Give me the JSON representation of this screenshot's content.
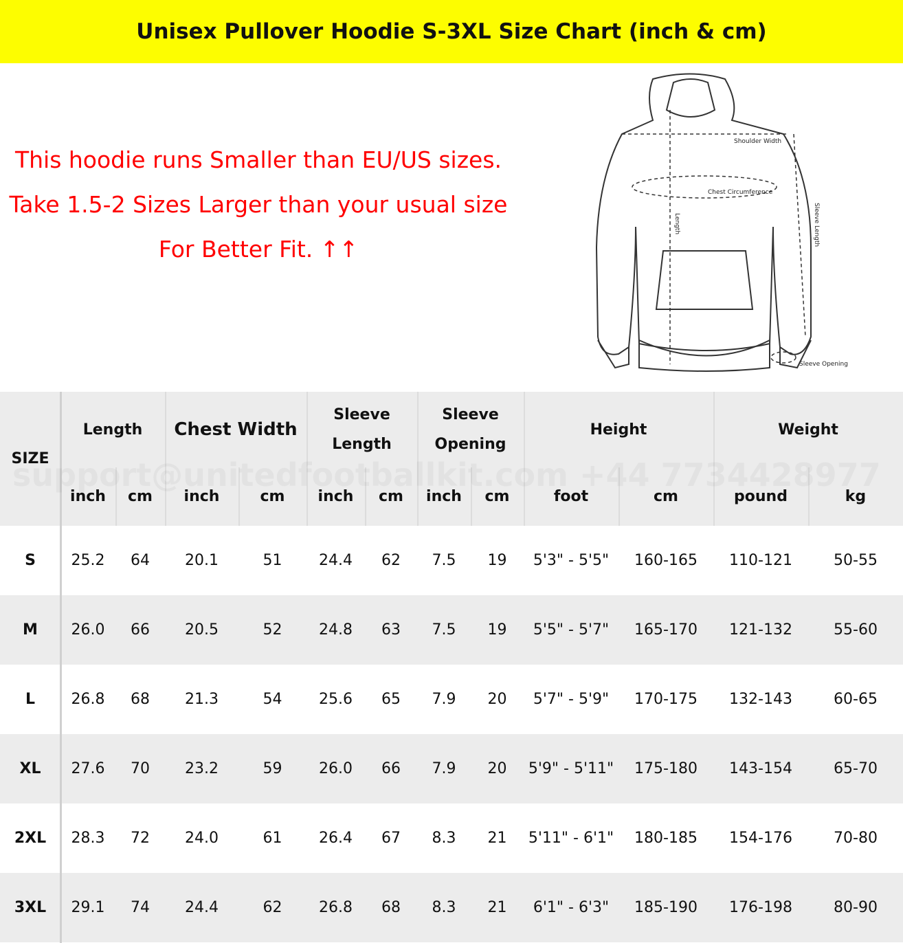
{
  "header": {
    "title": "Unisex Pullover Hoodie S-3XL Size Chart (inch & cm)"
  },
  "notice": {
    "lines": [
      "This hoodie runs Smaller than EU/US sizes.",
      "Take 1.5-2 Sizes Larger than your usual size For Better Fit. ↑↑"
    ]
  },
  "diagram": {
    "labels": [
      "Shoulder Width",
      "Chest Circumference",
      "Length",
      "Sleeve Length",
      "Sleeve Opening"
    ]
  },
  "watermark": "support@unitedfootballkit.com  +44 7734428977",
  "table": {
    "size_header": "SIZE",
    "groups": [
      "Length",
      "Chest Width",
      "Sleeve Length",
      "Sleeve Opening",
      "Height",
      "Weight"
    ],
    "units": [
      "inch",
      "cm",
      "inch",
      "cm",
      "inch",
      "cm",
      "inch",
      "cm",
      "foot",
      "cm",
      "pound",
      "kg"
    ],
    "rows": [
      [
        "S",
        "25.2",
        "64",
        "20.1",
        "51",
        "24.4",
        "62",
        "7.5",
        "19",
        "5'3\" - 5'5\"",
        "160-165",
        "110-121",
        "50-55"
      ],
      [
        "M",
        "26.0",
        "66",
        "20.5",
        "52",
        "24.8",
        "63",
        "7.5",
        "19",
        "5'5\" - 5'7\"",
        "165-170",
        "121-132",
        "55-60"
      ],
      [
        "L",
        "26.8",
        "68",
        "21.3",
        "54",
        "25.6",
        "65",
        "7.9",
        "20",
        "5'7\" - 5'9\"",
        "170-175",
        "132-143",
        "60-65"
      ],
      [
        "XL",
        "27.6",
        "70",
        "23.2",
        "59",
        "26.0",
        "66",
        "7.9",
        "20",
        "5'9\" - 5'11\"",
        "175-180",
        "143-154",
        "65-70"
      ],
      [
        "2XL",
        "28.3",
        "72",
        "24.0",
        "61",
        "26.4",
        "67",
        "8.3",
        "21",
        "5'11\" - 6'1\"",
        "180-185",
        "154-176",
        "70-80"
      ],
      [
        "3XL",
        "29.1",
        "74",
        "24.4",
        "62",
        "26.8",
        "68",
        "8.3",
        "21",
        "6'1\" - 6'3\"",
        "185-190",
        "176-198",
        "80-90"
      ]
    ]
  }
}
